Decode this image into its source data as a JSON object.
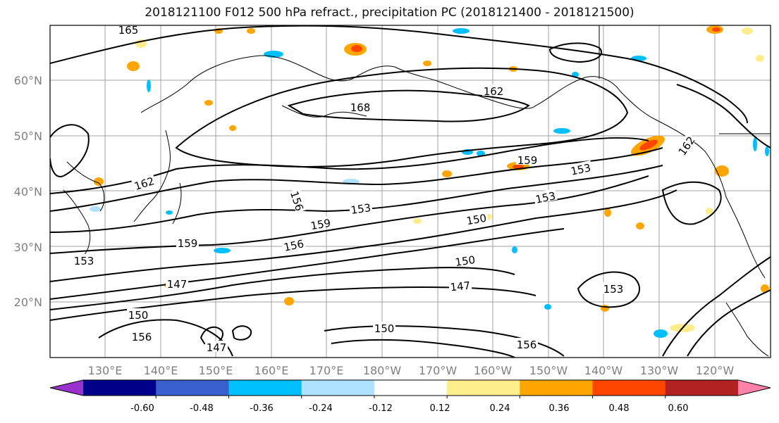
{
  "title": "2018121100 F012 500 hPa refract., precipitation PC (2018121400 - 2018121500)",
  "lat_labels": [
    "60°N",
    "50°N",
    "40°N",
    "30°N",
    "20°N"
  ],
  "lon_labels": [
    "130°E",
    "140°E",
    "150°E",
    "160°E",
    "170°E",
    "180°W",
    "170°W",
    "160°W",
    "150°W",
    "140°W",
    "130°W",
    "120°W"
  ],
  "contour_labels": [
    "165",
    "168",
    "162",
    "162",
    "159",
    "159",
    "159",
    "156",
    "156",
    "153",
    "153",
    "153",
    "153",
    "150",
    "150",
    "150",
    "147",
    "147",
    "147",
    "156",
    "153",
    "150",
    "156",
    "162"
  ],
  "colorbar": {
    "colors": [
      "#9932cc",
      "#00008b",
      "#3a5fcd",
      "#00bfff",
      "#b0e2ff",
      "#ffffff",
      "#ffec8b",
      "#ffa500",
      "#ff4500",
      "#b22222",
      "#ff82ab"
    ],
    "tick_labels": [
      "-0.60",
      "-0.48",
      "-0.36",
      "-0.24",
      "-0.12",
      "0.12",
      "0.24",
      "0.36",
      "0.48",
      "0.60"
    ]
  }
}
